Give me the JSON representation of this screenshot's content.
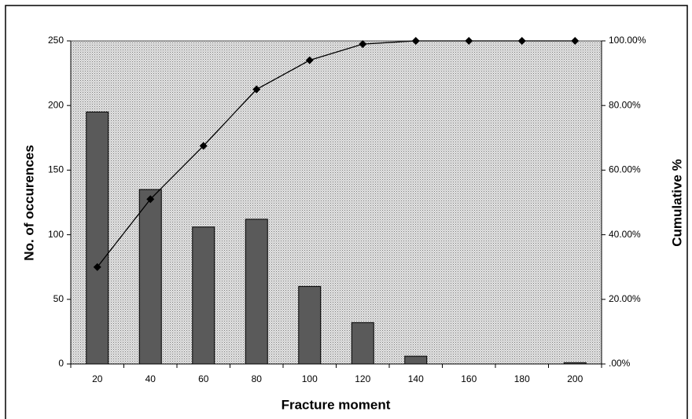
{
  "chart_data": {
    "type": "bar",
    "xlabel": "Fracture moment",
    "ylabel": "No. of occurences",
    "y2label": "Cumulative %",
    "categories": [
      20,
      40,
      60,
      80,
      100,
      120,
      140,
      160,
      180,
      200
    ],
    "series": [
      {
        "type": "bar",
        "color": "#5a5a5a",
        "values": [
          195,
          135,
          106,
          112,
          60,
          32,
          6,
          0,
          0,
          1
        ]
      },
      {
        "type": "line",
        "axis": "y2",
        "color": "#000000",
        "values": [
          30,
          51,
          67.5,
          85,
          94,
          99,
          100,
          100,
          100,
          100
        ]
      }
    ],
    "ylim": [
      0,
      250
    ],
    "yticks": [
      0,
      50,
      100,
      150,
      200,
      250
    ],
    "y2lim": [
      0,
      100
    ],
    "y2ticks": [
      {
        "value": 0,
        "label": ".00%"
      },
      {
        "value": 20,
        "label": "20.00%"
      },
      {
        "value": 40,
        "label": "40.00%"
      },
      {
        "value": 60,
        "label": "60.00%"
      },
      {
        "value": 80,
        "label": "80.00%"
      },
      {
        "value": 100,
        "label": "100.00%"
      }
    ]
  }
}
